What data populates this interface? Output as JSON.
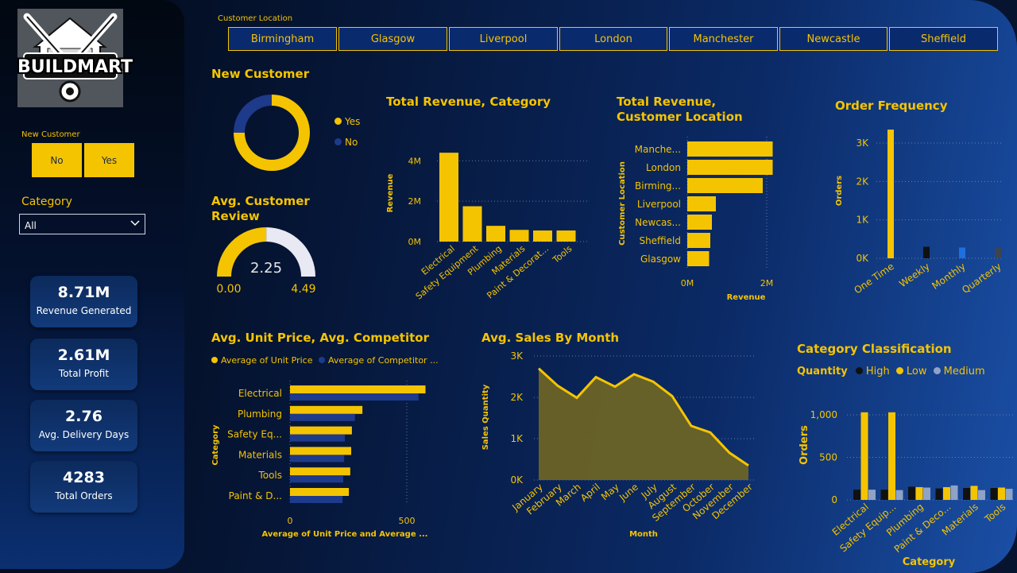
{
  "colors": {
    "accent": "#f5c400",
    "navy": "#0a2a6e",
    "dark_blue": "#1e3a8a",
    "black": "#111111",
    "bright_blue": "#1e6fe0",
    "gray": "#3c4452",
    "medium": "#8fa3c6",
    "light": "#e9e9f4"
  },
  "logo": {
    "text": "BUILDMART",
    "icon": "hammer-wrench-house-logo"
  },
  "new_customer_filter": {
    "title": "New Customer",
    "options": [
      "No",
      "Yes"
    ]
  },
  "category_filter": {
    "title": "Category",
    "selected": "All",
    "icon": "chevron-down-icon"
  },
  "kpis": [
    {
      "value": "8.71M",
      "label": "Revenue Generated"
    },
    {
      "value": "2.61M",
      "label": "Total Profit"
    },
    {
      "value": "2.76",
      "label": "Avg. Delivery Days"
    },
    {
      "value": "4283",
      "label": "Total Orders"
    }
  ],
  "customer_location": {
    "label": "Customer Location",
    "options": [
      "Birmingham",
      "Glasgow",
      "Liverpool",
      "London",
      "Manchester",
      "Newcastle",
      "Sheffield"
    ]
  },
  "new_customer": {
    "title": "New Customer",
    "legend": [
      "Yes",
      "No"
    ]
  },
  "review": {
    "title": "Avg. Customer Review",
    "value": "2.25",
    "min": "0.00",
    "max": "4.49"
  },
  "titles": {
    "revenue_category": "Total Revenue, Category",
    "revenue_location": "Total Revenue, Customer Location",
    "order_frequency": "Order Frequency",
    "unit_price": "Avg. Unit Price, Avg. Competitor",
    "sales_month": "Avg. Sales By Month",
    "classification": "Category Classification"
  },
  "unit_price_legend": [
    "Average of Unit Price",
    "Average of Competitor ..."
  ],
  "classification_legend": {
    "title": "Quantity",
    "items": [
      "High",
      "Low",
      "Medium"
    ]
  },
  "chart_data": [
    {
      "id": "new_customer",
      "type": "pie",
      "title": "New Customer",
      "labels": [
        "Yes",
        "No"
      ],
      "values": [
        75,
        25
      ]
    },
    {
      "id": "review_gauge",
      "type": "gauge",
      "title": "Avg. Customer Review",
      "value": 2.25,
      "min": 0.0,
      "max": 4.49
    },
    {
      "id": "revenue_category",
      "type": "bar",
      "title": "Total Revenue, Category",
      "ylabel": "Revenue",
      "categories": [
        "Electrical",
        "Safety Equipment",
        "Plumbing",
        "Materials",
        "Paint & Decorat...",
        "Tools"
      ],
      "values": [
        4.4,
        1.75,
        0.78,
        0.58,
        0.55,
        0.55
      ],
      "yticks": [
        "0M",
        "2M",
        "4M"
      ],
      "ylim": [
        0,
        4.8
      ]
    },
    {
      "id": "revenue_location",
      "type": "bar",
      "orientation": "horizontal",
      "title": "Total Revenue, Customer Location",
      "xlabel": "Revenue",
      "ylabel": "Customer Location",
      "categories": [
        "Manche...",
        "London",
        "Birming...",
        "Liverpool",
        "Newcas...",
        "Sheffield",
        "Glasgow"
      ],
      "values": [
        2.15,
        2.15,
        1.9,
        0.72,
        0.62,
        0.58,
        0.55
      ],
      "xticks": [
        "0M",
        "2M"
      ],
      "xlim": [
        0,
        2.2
      ]
    },
    {
      "id": "order_frequency",
      "type": "bar",
      "title": "Order Frequency",
      "ylabel": "Orders",
      "categories": [
        "One Time",
        "Weekly",
        "Monthly",
        "Quarterly"
      ],
      "values": [
        3350,
        300,
        280,
        270
      ],
      "bar_colors": [
        "#f5c400",
        "#111111",
        "#1e6fe0",
        "#3c4452"
      ],
      "yticks": [
        "0K",
        "1K",
        "2K",
        "3K"
      ],
      "ylim": [
        0,
        3500
      ]
    },
    {
      "id": "unit_price",
      "type": "bar",
      "orientation": "horizontal",
      "title": "Avg. Unit Price, Avg. Competitor",
      "xlabel": "Average of Unit Price and Average ...",
      "ylabel": "Category",
      "categories": [
        "Electrical",
        "Plumbing",
        "Safety Eq...",
        "Materials",
        "Tools",
        "Paint & D..."
      ],
      "series": [
        {
          "name": "Average of Unit Price",
          "values": [
            580,
            310,
            265,
            262,
            258,
            252
          ]
        },
        {
          "name": "Average of Competitor ...",
          "values": [
            550,
            278,
            235,
            232,
            228,
            225
          ]
        }
      ],
      "xticks": [
        "0",
        "500"
      ],
      "xlim": [
        0,
        600
      ]
    },
    {
      "id": "sales_month",
      "type": "area",
      "title": "Avg. Sales By Month",
      "xlabel": "Month",
      "ylabel": "Sales Quantity",
      "categories": [
        "January",
        "February",
        "March",
        "April",
        "May",
        "June",
        "July",
        "August",
        "September",
        "October",
        "November",
        "December"
      ],
      "values": [
        2700,
        2280,
        1990,
        2490,
        2260,
        2560,
        2380,
        2030,
        1310,
        1150,
        660,
        350
      ],
      "yticks": [
        "0K",
        "1K",
        "2K",
        "3K"
      ],
      "ylim": [
        0,
        3000
      ]
    },
    {
      "id": "classification",
      "type": "bar",
      "title": "Category Classification",
      "xlabel": "Category",
      "ylabel": "Orders",
      "categories": [
        "Electrical",
        "Safety Equip...",
        "Plumbing",
        "Paint & Deco...",
        "Materials",
        "Tools"
      ],
      "series": [
        {
          "name": "High",
          "values": [
            120,
            120,
            155,
            135,
            140,
            140
          ]
        },
        {
          "name": "Low",
          "values": [
            1030,
            1030,
            150,
            150,
            165,
            145
          ]
        },
        {
          "name": "Medium",
          "values": [
            120,
            115,
            145,
            170,
            115,
            130
          ]
        }
      ],
      "yticks": [
        "0",
        "500",
        "1,000"
      ],
      "ylim": [
        0,
        1100
      ]
    }
  ]
}
